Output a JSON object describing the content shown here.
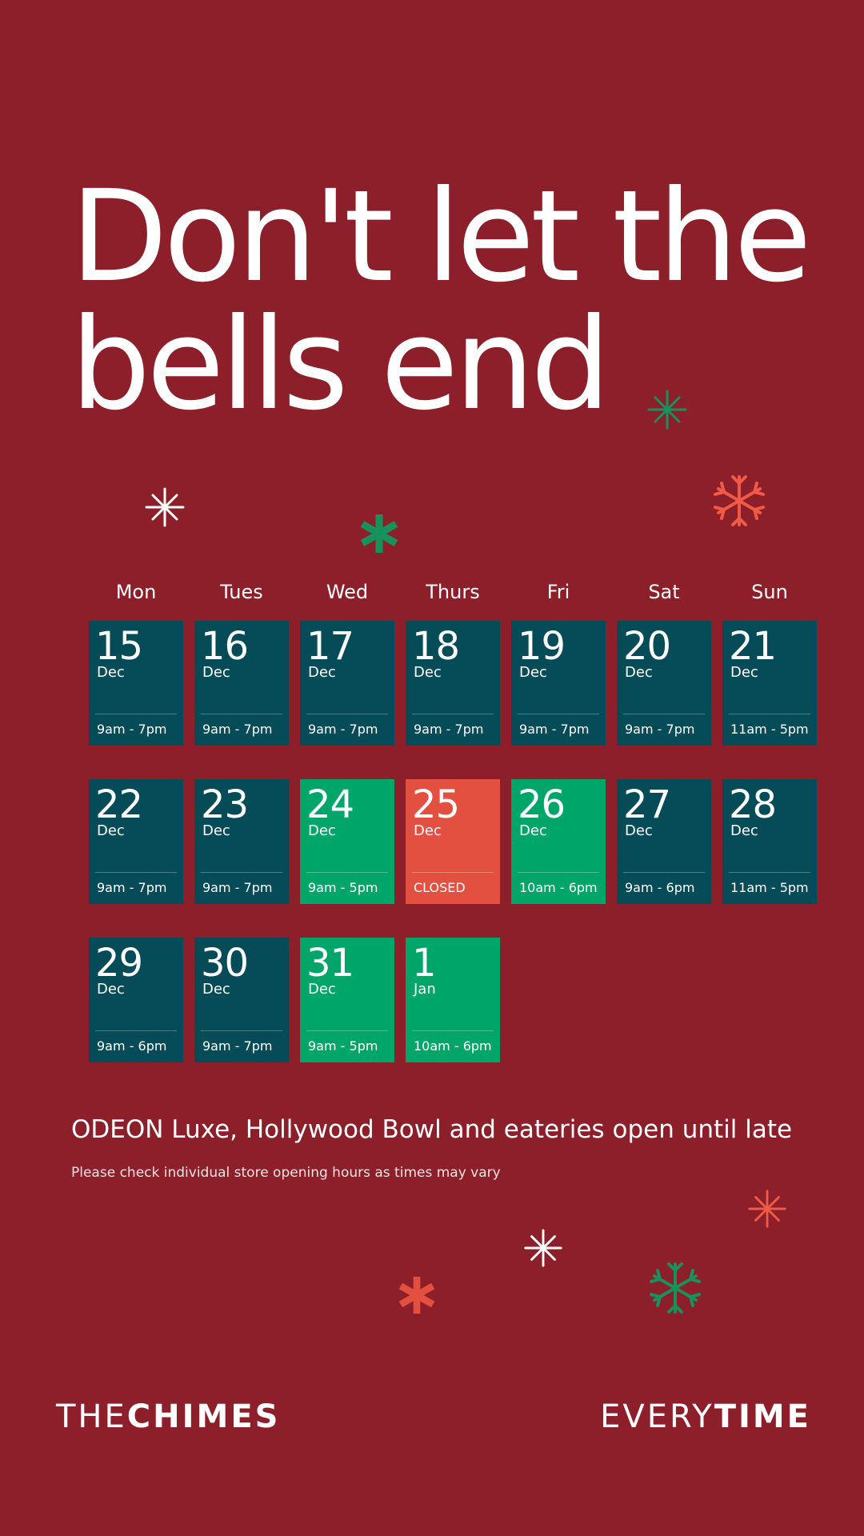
{
  "headline": {
    "line1": "Don't let the",
    "line2": "bells end"
  },
  "weekdays": [
    "Mon",
    "Tues",
    "Wed",
    "Thurs",
    "Fri",
    "Sat",
    "Sun"
  ],
  "days": [
    {
      "day": "15",
      "month": "Dec",
      "hours": "9am - 7pm",
      "color": "#064c58"
    },
    {
      "day": "16",
      "month": "Dec",
      "hours": "9am - 7pm",
      "color": "#064c58"
    },
    {
      "day": "17",
      "month": "Dec",
      "hours": "9am - 7pm",
      "color": "#064c58"
    },
    {
      "day": "18",
      "month": "Dec",
      "hours": "9am - 7pm",
      "color": "#064c58"
    },
    {
      "day": "19",
      "month": "Dec",
      "hours": "9am - 7pm",
      "color": "#064c58"
    },
    {
      "day": "20",
      "month": "Dec",
      "hours": "9am - 7pm",
      "color": "#064c58"
    },
    {
      "day": "21",
      "month": "Dec",
      "hours": "11am - 5pm",
      "color": "#064c58"
    },
    {
      "day": "22",
      "month": "Dec",
      "hours": "9am - 7pm",
      "color": "#064c58"
    },
    {
      "day": "23",
      "month": "Dec",
      "hours": "9am - 7pm",
      "color": "#064c58"
    },
    {
      "day": "24",
      "month": "Dec",
      "hours": "9am - 5pm",
      "color": "#00a56a"
    },
    {
      "day": "25",
      "month": "Dec",
      "hours": "CLOSED",
      "color": "#e4503f"
    },
    {
      "day": "26",
      "month": "Dec",
      "hours": "10am - 6pm",
      "color": "#00a56a"
    },
    {
      "day": "27",
      "month": "Dec",
      "hours": "9am - 6pm",
      "color": "#064c58"
    },
    {
      "day": "28",
      "month": "Dec",
      "hours": "11am - 5pm",
      "color": "#064c58"
    },
    {
      "day": "29",
      "month": "Dec",
      "hours": "9am - 6pm",
      "color": "#064c58"
    },
    {
      "day": "30",
      "month": "Dec",
      "hours": "9am - 7pm",
      "color": "#064c58"
    },
    {
      "day": "31",
      "month": "Dec",
      "hours": "9am - 5pm",
      "color": "#00a56a"
    },
    {
      "day": "1",
      "month": "Jan",
      "hours": "10am - 6pm",
      "color": "#00a56a"
    }
  ],
  "notice": "ODEON Luxe, Hollywood Bowl and eateries open until late",
  "note": "Please check individual store opening hours as times may vary",
  "brand_left": {
    "light": "THE",
    "bold": "CHIMES",
    "full": "THECHIMES"
  },
  "brand_right": {
    "light": "EVERY",
    "bold": "TIME"
  },
  "colors": {
    "background": "#8c1f29",
    "teal": "#064c58",
    "green": "#00a56a",
    "red": "#e4503f",
    "coral": "#f05a47",
    "deco_green": "#17925c"
  },
  "icons": [
    "asterisk-icon",
    "snowflake-icon",
    "sparkle-icon"
  ]
}
